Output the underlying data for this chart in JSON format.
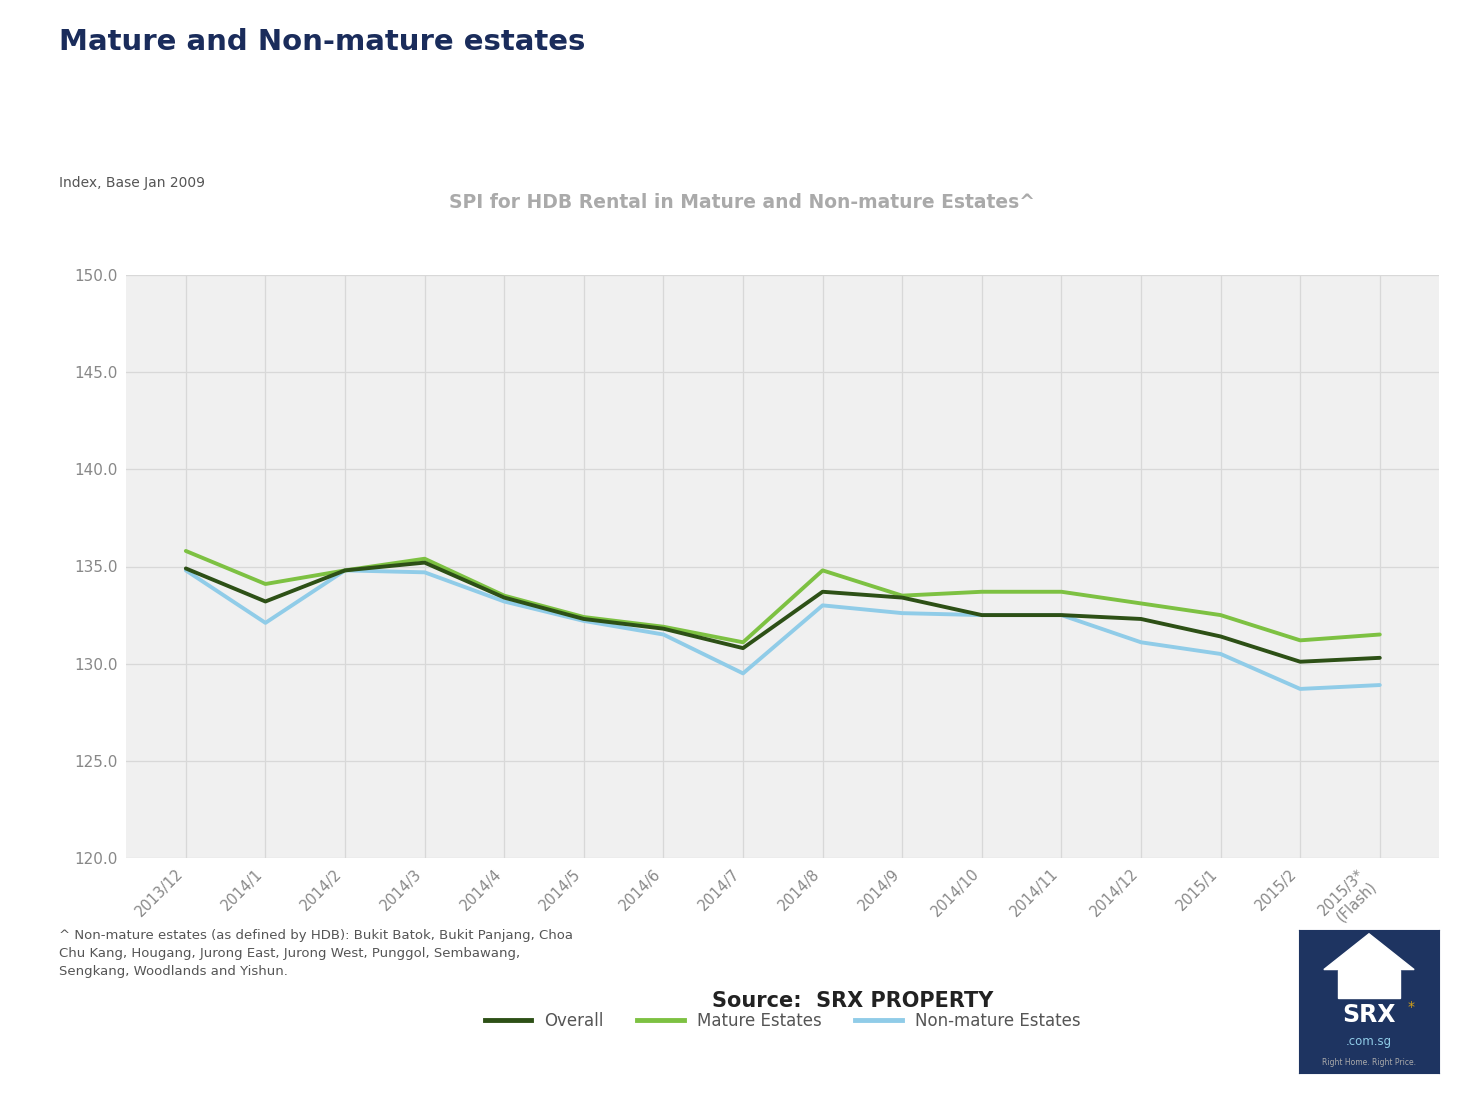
{
  "title": "Mature and Non-mature estates",
  "subtitle": "SPI for HDB Rental in Mature and Non-mature Estates^",
  "ylabel": "Index, Base Jan 2009",
  "x_labels": [
    "2013/12",
    "2014/1",
    "2014/2",
    "2014/3",
    "2014/4",
    "2014/5",
    "2014/6",
    "2014/7",
    "2014/8",
    "2014/9",
    "2014/10",
    "2014/11",
    "2014/12",
    "2015/1",
    "2015/2",
    "2015/3*\n(Flash)"
  ],
  "overall": [
    134.9,
    133.2,
    134.8,
    135.2,
    133.4,
    132.3,
    131.8,
    130.8,
    133.7,
    133.4,
    132.5,
    132.5,
    132.3,
    131.4,
    130.1,
    130.3
  ],
  "mature": [
    135.8,
    134.1,
    134.8,
    135.4,
    133.5,
    132.4,
    131.9,
    131.1,
    134.8,
    133.5,
    133.7,
    133.7,
    133.1,
    132.5,
    131.2,
    131.5
  ],
  "non_mature": [
    134.8,
    132.1,
    134.8,
    134.7,
    133.2,
    132.2,
    131.5,
    129.5,
    133.0,
    132.6,
    132.5,
    132.5,
    131.1,
    130.5,
    128.7,
    128.9
  ],
  "overall_color": "#2d5016",
  "mature_color": "#7dc142",
  "non_mature_color": "#90cce8",
  "ylim_min": 120.0,
  "ylim_max": 150.0,
  "yticks": [
    120.0,
    125.0,
    130.0,
    135.0,
    140.0,
    145.0,
    150.0
  ],
  "title_color": "#1a2c5b",
  "subtitle_color": "#aaaaaa",
  "bg_color": "#f0f0f0",
  "grid_color": "#d8d8d8",
  "axis_label_color": "#888888",
  "line_width": 2.8,
  "footnote": "^ Non-mature estates (as defined by HDB): Bukit Batok, Bukit Panjang, Choa\nChu Kang, Hougang, Jurong East, Jurong West, Punggol, Sembawang,\nSengkang, Woodlands and Yishun.",
  "source_text": "Source:  SRX PROPERTY",
  "srx_bg": "#1e3461",
  "srx_star_color": "#d4a017",
  "right_caption": "Right Home. Right Price."
}
